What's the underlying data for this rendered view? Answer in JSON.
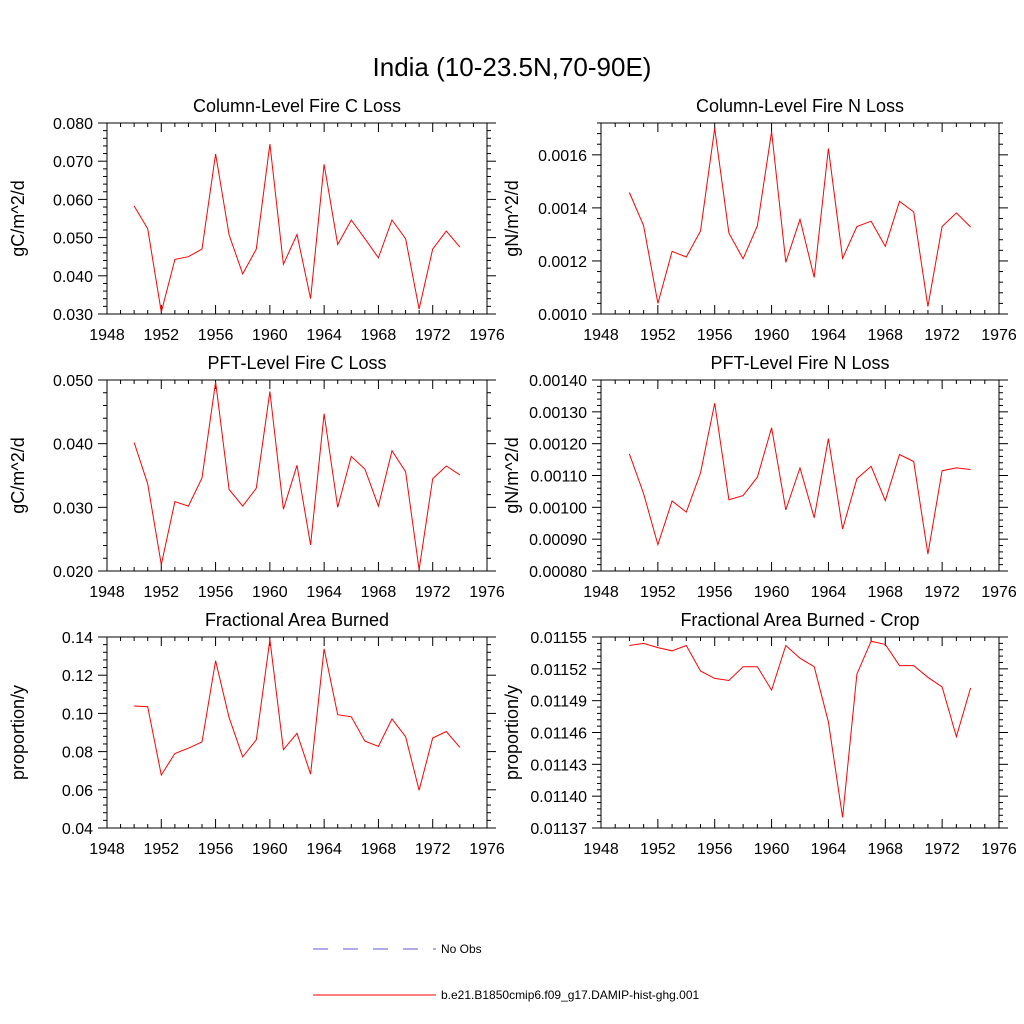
{
  "figure_title": "India (10-23.5N,70-90E)",
  "chart_data": [
    {
      "type": "line",
      "title": "Column-Level Fire C Loss",
      "ylabel": "gC/m^2/d",
      "xlim": [
        1948,
        1976
      ],
      "ylim": [
        0.03,
        0.08
      ],
      "xticks": [
        1948,
        1952,
        1956,
        1960,
        1964,
        1968,
        1972,
        1976
      ],
      "xtick_labels": [
        "1948",
        "1952",
        "1956",
        "1960",
        "1964",
        "1968",
        "1972",
        "1976"
      ],
      "yticks": [
        0.03,
        0.04,
        0.05,
        0.06,
        0.07,
        0.08
      ],
      "ytick_labels": [
        "0.030",
        "0.040",
        "0.050",
        "0.060",
        "0.070",
        "0.080"
      ],
      "x": [
        1950,
        1951,
        1952,
        1953,
        1954,
        1955,
        1956,
        1957,
        1958,
        1959,
        1960,
        1961,
        1962,
        1963,
        1964,
        1965,
        1966,
        1967,
        1968,
        1969,
        1970,
        1971,
        1972,
        1973,
        1974
      ],
      "series": [
        {
          "values": [
            0.0583,
            0.0523,
            0.0305,
            0.0443,
            0.045,
            0.047,
            0.0719,
            0.0507,
            0.0405,
            0.047,
            0.0745,
            0.043,
            0.0508,
            0.034,
            0.0692,
            0.0482,
            0.0546,
            0.0497,
            0.0447,
            0.0546,
            0.0497,
            0.0313,
            0.047,
            0.0517,
            0.0475
          ],
          "color": "#ff0000"
        }
      ]
    },
    {
      "type": "line",
      "title": "Column-Level Fire N Loss",
      "ylabel": "gN/m^2/d",
      "xlim": [
        1948,
        1976
      ],
      "ylim": [
        0.001,
        0.00172
      ],
      "xticks": [
        1948,
        1952,
        1956,
        1960,
        1964,
        1968,
        1972,
        1976
      ],
      "xtick_labels": [
        "1948",
        "1952",
        "1956",
        "1960",
        "1964",
        "1968",
        "1972",
        "1976"
      ],
      "yticks": [
        0.001,
        0.0012,
        0.0014,
        0.0016
      ],
      "ytick_labels": [
        "0.0010",
        "0.0012",
        "0.0014",
        "0.0016"
      ],
      "x": [
        1950,
        1951,
        1952,
        1953,
        1954,
        1955,
        1956,
        1957,
        1958,
        1959,
        1960,
        1961,
        1962,
        1963,
        1964,
        1965,
        1966,
        1967,
        1968,
        1969,
        1970,
        1971,
        1972,
        1973,
        1974
      ],
      "series": [
        {
          "values": [
            0.001458,
            0.001333,
            0.00104,
            0.001236,
            0.001215,
            0.001313,
            0.0017,
            0.001305,
            0.001208,
            0.001333,
            0.001688,
            0.001195,
            0.001357,
            0.001138,
            0.001624,
            0.00121,
            0.00133,
            0.00135,
            0.001255,
            0.001425,
            0.001385,
            0.001028,
            0.00133,
            0.001381,
            0.001328
          ],
          "color": "#ff0000"
        }
      ]
    },
    {
      "type": "line",
      "title": "PFT-Level Fire C Loss",
      "ylabel": "gC/m^2/d",
      "xlim": [
        1948,
        1976
      ],
      "ylim": [
        0.02,
        0.05
      ],
      "xticks": [
        1948,
        1952,
        1956,
        1960,
        1964,
        1968,
        1972,
        1976
      ],
      "xtick_labels": [
        "1948",
        "1952",
        "1956",
        "1960",
        "1964",
        "1968",
        "1972",
        "1976"
      ],
      "yticks": [
        0.02,
        0.03,
        0.04,
        0.05
      ],
      "ytick_labels": [
        "0.020",
        "0.030",
        "0.040",
        "0.050"
      ],
      "x": [
        1950,
        1951,
        1952,
        1953,
        1954,
        1955,
        1956,
        1957,
        1958,
        1959,
        1960,
        1961,
        1962,
        1963,
        1964,
        1965,
        1966,
        1967,
        1968,
        1969,
        1970,
        1971,
        1972,
        1973,
        1974
      ],
      "series": [
        {
          "values": [
            0.0402,
            0.0337,
            0.021,
            0.0309,
            0.0302,
            0.0346,
            0.0497,
            0.0328,
            0.0302,
            0.033,
            0.0482,
            0.0297,
            0.0366,
            0.0241,
            0.0447,
            0.03,
            0.038,
            0.036,
            0.0302,
            0.0389,
            0.0356,
            0.0202,
            0.0345,
            0.0365,
            0.0351
          ],
          "color": "#ff0000"
        }
      ]
    },
    {
      "type": "line",
      "title": "PFT-Level Fire N Loss",
      "ylabel": "gN/m^2/d",
      "xlim": [
        1948,
        1976
      ],
      "ylim": [
        0.0008,
        0.0014
      ],
      "xticks": [
        1948,
        1952,
        1956,
        1960,
        1964,
        1968,
        1972,
        1976
      ],
      "xtick_labels": [
        "1948",
        "1952",
        "1956",
        "1960",
        "1964",
        "1968",
        "1972",
        "1976"
      ],
      "yticks": [
        0.0008,
        0.0009,
        0.001,
        0.0011,
        0.0012,
        0.0013,
        0.0014
      ],
      "ytick_labels": [
        "0.00080",
        "0.00090",
        "0.00100",
        "0.00110",
        "0.00120",
        "0.00130",
        "0.00140"
      ],
      "x": [
        1950,
        1951,
        1952,
        1953,
        1954,
        1955,
        1956,
        1957,
        1958,
        1959,
        1960,
        1961,
        1962,
        1963,
        1964,
        1965,
        1966,
        1967,
        1968,
        1969,
        1970,
        1971,
        1972,
        1973,
        1974
      ],
      "series": [
        {
          "values": [
            0.001168,
            0.001043,
            0.000883,
            0.00102,
            0.000985,
            0.001108,
            0.001327,
            0.001024,
            0.001037,
            0.001095,
            0.00125,
            0.000992,
            0.001124,
            0.000967,
            0.001216,
            0.000932,
            0.00109,
            0.001129,
            0.001021,
            0.001166,
            0.001144,
            0.000853,
            0.001115,
            0.001124,
            0.001119
          ],
          "color": "#ff0000"
        }
      ]
    },
    {
      "type": "line",
      "title": "Fractional Area Burned",
      "ylabel": "proportion/y",
      "xlim": [
        1948,
        1976
      ],
      "ylim": [
        0.04,
        0.14
      ],
      "xticks": [
        1948,
        1952,
        1956,
        1960,
        1964,
        1968,
        1972,
        1976
      ],
      "xtick_labels": [
        "1948",
        "1952",
        "1956",
        "1960",
        "1964",
        "1968",
        "1972",
        "1976"
      ],
      "yticks": [
        0.04,
        0.06,
        0.08,
        0.1,
        0.12,
        0.14
      ],
      "ytick_labels": [
        "0.04",
        "0.06",
        "0.08",
        "0.10",
        "0.12",
        "0.14"
      ],
      "x": [
        1950,
        1951,
        1952,
        1953,
        1954,
        1955,
        1956,
        1957,
        1958,
        1959,
        1960,
        1961,
        1962,
        1963,
        1964,
        1965,
        1966,
        1967,
        1968,
        1969,
        1970,
        1971,
        1972,
        1973,
        1974
      ],
      "series": [
        {
          "values": [
            0.1039,
            0.1035,
            0.0677,
            0.079,
            0.0818,
            0.0851,
            0.1276,
            0.0978,
            0.0772,
            0.0862,
            0.1386,
            0.081,
            0.0896,
            0.0682,
            0.1338,
            0.0993,
            0.0982,
            0.0855,
            0.0827,
            0.0971,
            0.0878,
            0.0598,
            0.0871,
            0.0905,
            0.0822
          ],
          "color": "#ff0000"
        }
      ]
    },
    {
      "type": "line",
      "title": "Fractional Area Burned - Crop",
      "ylabel": "proportion/y",
      "xlim": [
        1948,
        1976
      ],
      "ylim": [
        0.01137,
        0.01155
      ],
      "xticks": [
        1948,
        1952,
        1956,
        1960,
        1964,
        1968,
        1972,
        1976
      ],
      "xtick_labels": [
        "1948",
        "1952",
        "1956",
        "1960",
        "1964",
        "1968",
        "1972",
        "1976"
      ],
      "yticks": [
        0.01137,
        0.0114,
        0.01143,
        0.01146,
        0.01149,
        0.01152,
        0.01155
      ],
      "ytick_labels": [
        "0.01137",
        "0.01140",
        "0.01143",
        "0.01146",
        "0.01149",
        "0.01152",
        "0.01155"
      ],
      "x": [
        1950,
        1951,
        1952,
        1953,
        1954,
        1955,
        1956,
        1957,
        1958,
        1959,
        1960,
        1961,
        1962,
        1963,
        1964,
        1965,
        1966,
        1967,
        1968,
        1969,
        1970,
        1971,
        1972,
        1973,
        1974
      ],
      "series": [
        {
          "values": [
            0.011542,
            0.011544,
            0.01154,
            0.011537,
            0.011542,
            0.011518,
            0.011511,
            0.011509,
            0.011522,
            0.011522,
            0.0115,
            0.011542,
            0.01153,
            0.011522,
            0.01147,
            0.01138,
            0.011515,
            0.011546,
            0.011543,
            0.011523,
            0.011523,
            0.011512,
            0.011503,
            0.011456,
            0.011502
          ],
          "color": "#ff0000"
        }
      ]
    }
  ],
  "legend": {
    "items": [
      {
        "label": "No Obs",
        "color": "#5b5bd6",
        "style": "dashed"
      },
      {
        "label": "b.e21.B1850cmip6.f09_g17.DAMIP-hist-ghg.001",
        "color": "#ff0000",
        "style": "solid"
      }
    ]
  }
}
